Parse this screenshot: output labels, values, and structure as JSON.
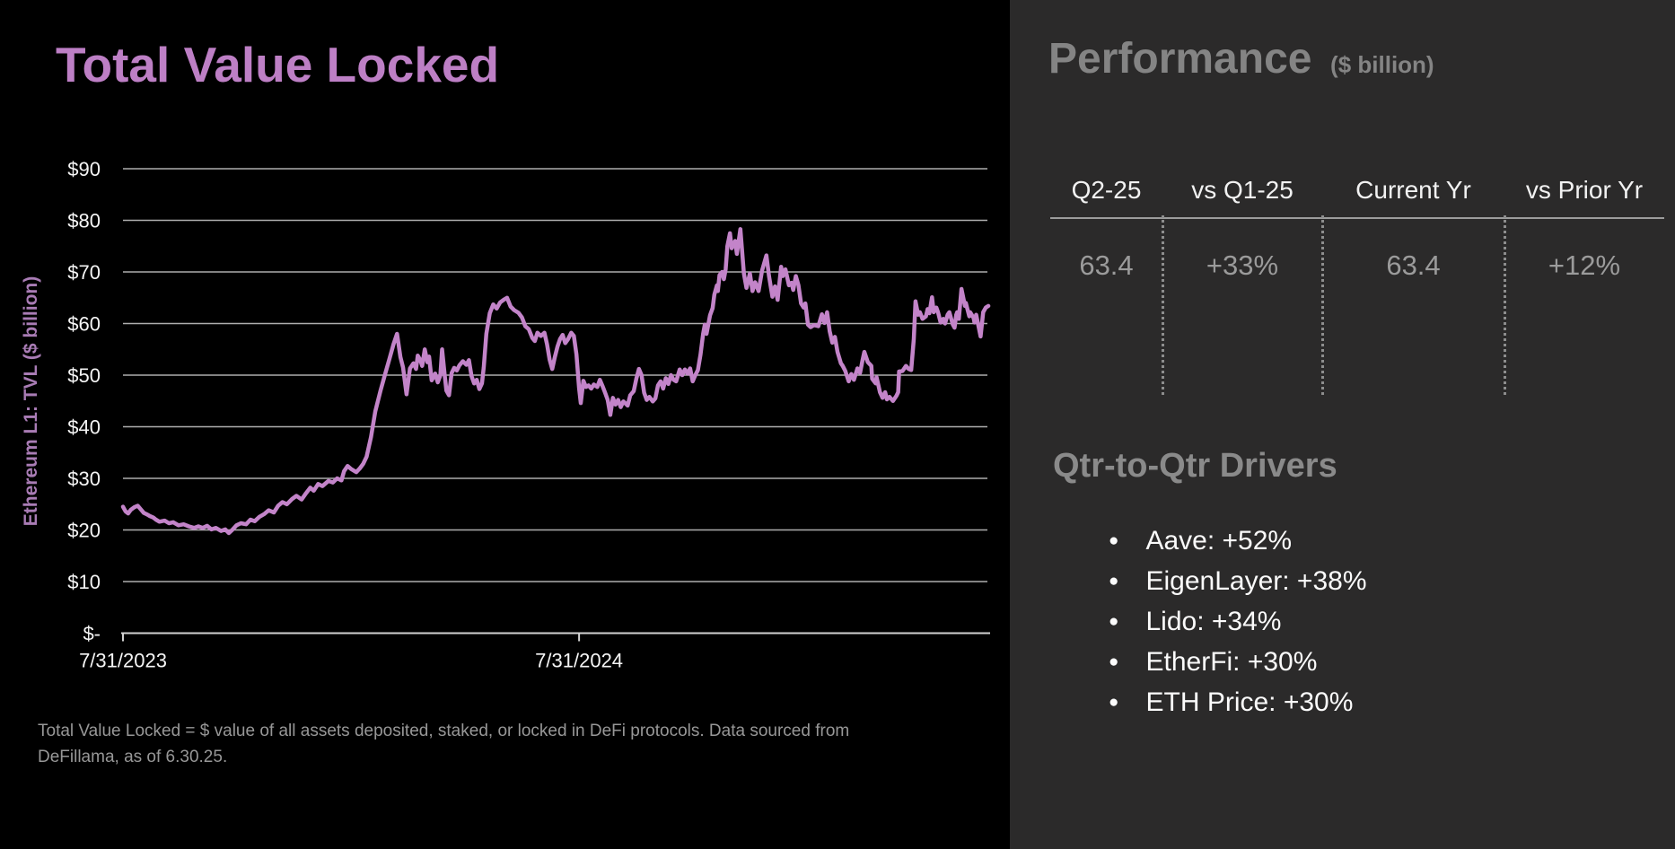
{
  "left_panel": {
    "title": "Total Value Locked",
    "footnote_line1": "Total Value Locked = $ value of all assets deposited, staked, or locked in DeFi protocols. Data sourced from",
    "footnote_line2": "DeFillama, as of 6.30.25."
  },
  "chart_data": {
    "type": "line",
    "title": "Total Value Locked",
    "ylabel": "Ethereum L1: TVL ($ billion)",
    "xlabel": "",
    "ylim": [
      0,
      90
    ],
    "grid": true,
    "legend_position": "none",
    "line_color": "#c384c9",
    "series_name": "Ethereum L1 TVL ($ billion)",
    "yticks": [
      {
        "value": 0,
        "label": "$-"
      },
      {
        "value": 10,
        "label": "$10"
      },
      {
        "value": 20,
        "label": "$20"
      },
      {
        "value": 30,
        "label": "$30"
      },
      {
        "value": 40,
        "label": "$40"
      },
      {
        "value": 50,
        "label": "$50"
      },
      {
        "value": 60,
        "label": "$60"
      },
      {
        "value": 70,
        "label": "$70"
      },
      {
        "value": 80,
        "label": "$80"
      },
      {
        "value": 90,
        "label": "$90"
      }
    ],
    "xticks": [
      {
        "frac": 0.0,
        "label": "7/31/2023"
      },
      {
        "frac": 0.526,
        "label": "7/31/2024"
      }
    ],
    "x_range_dates": [
      "7/31/2023",
      "6/30/2025"
    ],
    "points": [
      [
        0.0,
        24.5
      ],
      [
        0.003,
        23.6
      ],
      [
        0.006,
        23.2
      ],
      [
        0.009,
        23.9
      ],
      [
        0.013,
        24.4
      ],
      [
        0.017,
        24.7
      ],
      [
        0.021,
        23.9
      ],
      [
        0.024,
        23.3
      ],
      [
        0.028,
        23.0
      ],
      [
        0.031,
        22.7
      ],
      [
        0.035,
        22.4
      ],
      [
        0.038,
        22.0
      ],
      [
        0.042,
        21.6
      ],
      [
        0.048,
        21.8
      ],
      [
        0.053,
        21.3
      ],
      [
        0.058,
        21.5
      ],
      [
        0.064,
        20.9
      ],
      [
        0.07,
        21.1
      ],
      [
        0.076,
        20.7
      ],
      [
        0.082,
        20.4
      ],
      [
        0.087,
        20.7
      ],
      [
        0.092,
        20.4
      ],
      [
        0.097,
        20.8
      ],
      [
        0.102,
        20.1
      ],
      [
        0.107,
        20.4
      ],
      [
        0.113,
        19.8
      ],
      [
        0.118,
        20.1
      ],
      [
        0.122,
        19.4
      ],
      [
        0.126,
        20.0
      ],
      [
        0.131,
        20.9
      ],
      [
        0.136,
        21.3
      ],
      [
        0.142,
        21.1
      ],
      [
        0.147,
        22.0
      ],
      [
        0.152,
        21.7
      ],
      [
        0.157,
        22.5
      ],
      [
        0.163,
        23.1
      ],
      [
        0.168,
        23.8
      ],
      [
        0.174,
        23.4
      ],
      [
        0.179,
        24.7
      ],
      [
        0.184,
        25.4
      ],
      [
        0.189,
        25.0
      ],
      [
        0.195,
        26.0
      ],
      [
        0.2,
        26.6
      ],
      [
        0.206,
        25.9
      ],
      [
        0.211,
        27.1
      ],
      [
        0.216,
        28.2
      ],
      [
        0.22,
        27.6
      ],
      [
        0.225,
        28.9
      ],
      [
        0.23,
        28.5
      ],
      [
        0.237,
        29.5
      ],
      [
        0.242,
        29.2
      ],
      [
        0.247,
        30.0
      ],
      [
        0.252,
        29.6
      ],
      [
        0.255,
        31.4
      ],
      [
        0.259,
        32.4
      ],
      [
        0.263,
        31.8
      ],
      [
        0.269,
        31.2
      ],
      [
        0.273,
        31.9
      ],
      [
        0.277,
        32.8
      ],
      [
        0.281,
        34.2
      ],
      [
        0.286,
        38.0
      ],
      [
        0.291,
        43.0
      ],
      [
        0.297,
        47.0
      ],
      [
        0.302,
        50.0
      ],
      [
        0.307,
        53.0
      ],
      [
        0.312,
        56.0
      ],
      [
        0.316,
        58.0
      ],
      [
        0.32,
        53.5
      ],
      [
        0.323,
        51.5
      ],
      [
        0.327,
        46.3
      ],
      [
        0.331,
        51.3
      ],
      [
        0.335,
        52.3
      ],
      [
        0.338,
        51.2
      ],
      [
        0.34,
        53.8
      ],
      [
        0.343,
        52.9
      ],
      [
        0.345,
        51.8
      ],
      [
        0.348,
        55.0
      ],
      [
        0.351,
        52.5
      ],
      [
        0.353,
        53.6
      ],
      [
        0.356,
        49.0
      ],
      [
        0.36,
        50.3
      ],
      [
        0.363,
        48.6
      ],
      [
        0.366,
        50.0
      ],
      [
        0.368,
        55.0
      ],
      [
        0.371,
        50.0
      ],
      [
        0.373,
        47.0
      ],
      [
        0.376,
        46.1
      ],
      [
        0.379,
        50.4
      ],
      [
        0.382,
        51.4
      ],
      [
        0.385,
        50.9
      ],
      [
        0.388,
        51.9
      ],
      [
        0.392,
        52.7
      ],
      [
        0.396,
        52.0
      ],
      [
        0.399,
        52.9
      ],
      [
        0.402,
        49.8
      ],
      [
        0.405,
        48.4
      ],
      [
        0.408,
        49.1
      ],
      [
        0.411,
        47.3
      ],
      [
        0.414,
        48.4
      ],
      [
        0.416,
        51.5
      ],
      [
        0.419,
        58.0
      ],
      [
        0.423,
        62.0
      ],
      [
        0.427,
        63.7
      ],
      [
        0.431,
        62.9
      ],
      [
        0.435,
        64.1
      ],
      [
        0.439,
        64.6
      ],
      [
        0.443,
        65.0
      ],
      [
        0.447,
        63.3
      ],
      [
        0.451,
        62.6
      ],
      [
        0.456,
        62.1
      ],
      [
        0.46,
        61.2
      ],
      [
        0.464,
        59.5
      ],
      [
        0.468,
        58.9
      ],
      [
        0.472,
        57.2
      ],
      [
        0.475,
        56.6
      ],
      [
        0.478,
        58.2
      ],
      [
        0.482,
        57.6
      ],
      [
        0.486,
        58.2
      ],
      [
        0.489,
        56.0
      ],
      [
        0.492,
        53.0
      ],
      [
        0.495,
        51.2
      ],
      [
        0.498,
        53.5
      ],
      [
        0.501,
        55.5
      ],
      [
        0.504,
        57.0
      ],
      [
        0.507,
        57.8
      ],
      [
        0.51,
        56.2
      ],
      [
        0.513,
        56.9
      ],
      [
        0.517,
        58.2
      ],
      [
        0.52,
        57.6
      ],
      [
        0.523,
        54.0
      ],
      [
        0.526,
        47.5
      ],
      [
        0.528,
        44.6
      ],
      [
        0.531,
        48.9
      ],
      [
        0.534,
        47.7
      ],
      [
        0.537,
        48.0
      ],
      [
        0.54,
        47.4
      ],
      [
        0.543,
        48.2
      ],
      [
        0.547,
        47.7
      ],
      [
        0.55,
        49.1
      ],
      [
        0.553,
        47.9
      ],
      [
        0.556,
        46.6
      ],
      [
        0.559,
        45.2
      ],
      [
        0.562,
        42.3
      ],
      [
        0.565,
        45.6
      ],
      [
        0.568,
        44.3
      ],
      [
        0.571,
        45.2
      ],
      [
        0.574,
        43.8
      ],
      [
        0.577,
        44.9
      ],
      [
        0.582,
        44.1
      ],
      [
        0.585,
        46.1
      ],
      [
        0.589,
        46.9
      ],
      [
        0.592,
        49.3
      ],
      [
        0.595,
        51.2
      ],
      [
        0.598,
        50.0
      ],
      [
        0.601,
        46.6
      ],
      [
        0.604,
        45.2
      ],
      [
        0.607,
        45.8
      ],
      [
        0.611,
        44.9
      ],
      [
        0.614,
        45.5
      ],
      [
        0.617,
        48.0
      ],
      [
        0.62,
        48.8
      ],
      [
        0.623,
        47.4
      ],
      [
        0.626,
        49.4
      ],
      [
        0.629,
        48.3
      ],
      [
        0.632,
        50.0
      ],
      [
        0.635,
        49.1
      ],
      [
        0.638,
        48.8
      ],
      [
        0.642,
        51.1
      ],
      [
        0.645,
        50.0
      ],
      [
        0.648,
        51.1
      ],
      [
        0.651,
        50.3
      ],
      [
        0.654,
        51.3
      ],
      [
        0.657,
        48.8
      ],
      [
        0.66,
        50.0
      ],
      [
        0.663,
        51.0
      ],
      [
        0.666,
        54.0
      ],
      [
        0.669,
        58.0
      ],
      [
        0.671,
        59.8
      ],
      [
        0.673,
        58.0
      ],
      [
        0.677,
        61.6
      ],
      [
        0.68,
        63.0
      ],
      [
        0.682,
        65.6
      ],
      [
        0.685,
        67.4
      ],
      [
        0.686,
        66.3
      ],
      [
        0.688,
        69.4
      ],
      [
        0.691,
        70.0
      ],
      [
        0.693,
        68.6
      ],
      [
        0.695,
        70.5
      ],
      [
        0.697,
        75.0
      ],
      [
        0.7,
        77.5
      ],
      [
        0.702,
        74.6
      ],
      [
        0.706,
        76.0
      ],
      [
        0.708,
        73.5
      ],
      [
        0.712,
        78.3
      ],
      [
        0.716,
        69.7
      ],
      [
        0.719,
        66.9
      ],
      [
        0.723,
        69.7
      ],
      [
        0.726,
        66.3
      ],
      [
        0.729,
        68.0
      ],
      [
        0.733,
        66.3
      ],
      [
        0.737,
        70.2
      ],
      [
        0.742,
        73.2
      ],
      [
        0.745,
        69.2
      ],
      [
        0.749,
        65.2
      ],
      [
        0.752,
        67.2
      ],
      [
        0.755,
        64.6
      ],
      [
        0.759,
        71.0
      ],
      [
        0.761,
        69.2
      ],
      [
        0.764,
        70.5
      ],
      [
        0.768,
        67.4
      ],
      [
        0.771,
        67.9
      ],
      [
        0.773,
        66.5
      ],
      [
        0.776,
        69.2
      ],
      [
        0.779,
        67.4
      ],
      [
        0.782,
        63.9
      ],
      [
        0.785,
        63.1
      ],
      [
        0.787,
        63.9
      ],
      [
        0.79,
        59.8
      ],
      [
        0.793,
        59.3
      ],
      [
        0.797,
        59.7
      ],
      [
        0.802,
        59.5
      ],
      [
        0.806,
        61.8
      ],
      [
        0.809,
        60.1
      ],
      [
        0.812,
        62.2
      ],
      [
        0.815,
        58.5
      ],
      [
        0.818,
        56.3
      ],
      [
        0.821,
        57.4
      ],
      [
        0.824,
        54.5
      ],
      [
        0.828,
        52.3
      ],
      [
        0.83,
        51.8
      ],
      [
        0.833,
        50.8
      ],
      [
        0.837,
        48.8
      ],
      [
        0.84,
        50.2
      ],
      [
        0.843,
        49.1
      ],
      [
        0.847,
        51.3
      ],
      [
        0.85,
        50.4
      ],
      [
        0.853,
        53.0
      ],
      [
        0.855,
        54.5
      ],
      [
        0.859,
        52.5
      ],
      [
        0.863,
        51.8
      ],
      [
        0.864,
        49.3
      ],
      [
        0.868,
        48.4
      ],
      [
        0.869,
        49.6
      ],
      [
        0.873,
        46.7
      ],
      [
        0.876,
        45.6
      ],
      [
        0.879,
        46.7
      ],
      [
        0.881,
        45.3
      ],
      [
        0.884,
        45.8
      ],
      [
        0.888,
        45.0
      ],
      [
        0.892,
        46.0
      ],
      [
        0.894,
        46.7
      ],
      [
        0.895,
        50.7
      ],
      [
        0.899,
        50.8
      ],
      [
        0.903,
        51.8
      ],
      [
        0.906,
        51.2
      ],
      [
        0.909,
        51.0
      ],
      [
        0.912,
        57.0
      ],
      [
        0.914,
        64.3
      ],
      [
        0.917,
        61.7
      ],
      [
        0.919,
        62.2
      ],
      [
        0.922,
        60.9
      ],
      [
        0.926,
        61.4
      ],
      [
        0.928,
        62.8
      ],
      [
        0.93,
        62.0
      ],
      [
        0.933,
        65.1
      ],
      [
        0.935,
        62.2
      ],
      [
        0.938,
        63.1
      ],
      [
        0.94,
        62.2
      ],
      [
        0.943,
        60.2
      ],
      [
        0.946,
        60.9
      ],
      [
        0.948,
        60.0
      ],
      [
        0.951,
        61.7
      ],
      [
        0.953,
        62.2
      ],
      [
        0.957,
        59.8
      ],
      [
        0.959,
        59.2
      ],
      [
        0.961,
        61.7
      ],
      [
        0.962,
        62.2
      ],
      [
        0.964,
        60.9
      ],
      [
        0.967,
        66.7
      ],
      [
        0.971,
        63.4
      ],
      [
        0.972,
        64.0
      ],
      [
        0.976,
        61.4
      ],
      [
        0.977,
        62.2
      ],
      [
        0.981,
        61.1
      ],
      [
        0.982,
        60.2
      ],
      [
        0.984,
        61.7
      ],
      [
        0.989,
        57.5
      ],
      [
        0.992,
        62.2
      ],
      [
        0.995,
        63.1
      ],
      [
        0.998,
        63.4
      ]
    ]
  },
  "right_panel": {
    "title": "Performance",
    "title_suffix": "($ billion)",
    "table": {
      "columns": [
        "Q2-25",
        "vs Q1-25",
        "Current Yr",
        "vs Prior Yr"
      ],
      "values": [
        "63.4",
        "+33%",
        "63.4",
        "+12%"
      ]
    },
    "drivers": {
      "title": "Qtr-to-Qtr Drivers",
      "items": [
        "Aave: +52%",
        "EigenLayer: +38%",
        "Lido: +34%",
        "EtherFi: +30%",
        "ETH Price: +30%"
      ]
    }
  },
  "colors": {
    "left_background": "#000000",
    "right_background": "#2b2a2a",
    "title_purple": "#bd7fc5",
    "line_purple": "#c384c9",
    "axis_label_white": "#f5f5f5",
    "muted_gray": "#8a8a8a"
  }
}
